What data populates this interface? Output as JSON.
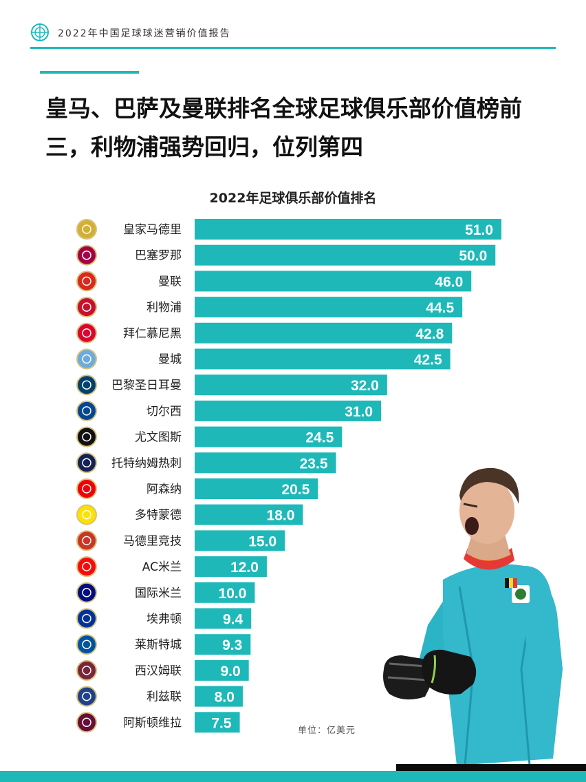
{
  "header": {
    "report_title": "2022年中国足球球迷营销价值报告"
  },
  "headline": {
    "line1": "皇马、巴萨及曼联排名全球足球俱乐部价值榜前",
    "line2": "三，利物浦强势回归，位列第四"
  },
  "unit_label": "单位：亿美元",
  "colors": {
    "accent": "#1fb8b9",
    "bar": "#1fb8b9",
    "value_text": "#ffffff"
  },
  "chart_data": {
    "type": "bar",
    "orientation": "horizontal",
    "title": "2022年足球俱乐部价值排名",
    "categories": [
      "皇家马德里",
      "巴塞罗那",
      "曼联",
      "利物浦",
      "拜仁慕尼黑",
      "曼城",
      "巴黎圣日耳曼",
      "切尔西",
      "尤文图斯",
      "托特纳姆热刺",
      "阿森纳",
      "多特蒙德",
      "马德里竞技",
      "AC米兰",
      "国际米兰",
      "埃弗顿",
      "莱斯特城",
      "西汉姆联",
      "利兹联",
      "阿斯顿维拉"
    ],
    "values": [
      51.0,
      50.0,
      46.0,
      44.5,
      42.8,
      42.5,
      32.0,
      31.0,
      24.5,
      23.5,
      20.5,
      18.0,
      15.0,
      12.0,
      10.0,
      9.4,
      9.3,
      9.0,
      8.0,
      7.5
    ],
    "value_labels": [
      "51.0",
      "50.0",
      "46.0",
      "44.5",
      "42.8",
      "42.5",
      "32.0",
      "31.0",
      "24.5",
      "23.5",
      "20.5",
      "18.0",
      "15.0",
      "12.0",
      "10.0",
      "9.4",
      "9.3",
      "9.0",
      "8.0",
      "7.5"
    ],
    "logo_colors": [
      "#d4af37",
      "#a50044",
      "#da291c",
      "#c8102e",
      "#dc052d",
      "#6cabdd",
      "#004170",
      "#034694",
      "#111111",
      "#132257",
      "#ef0107",
      "#fde100",
      "#cb3524",
      "#fb090b",
      "#010e80",
      "#003399",
      "#0053a0",
      "#7a263a",
      "#1d428a",
      "#670e36"
    ],
    "grid": false,
    "legend": "none"
  }
}
